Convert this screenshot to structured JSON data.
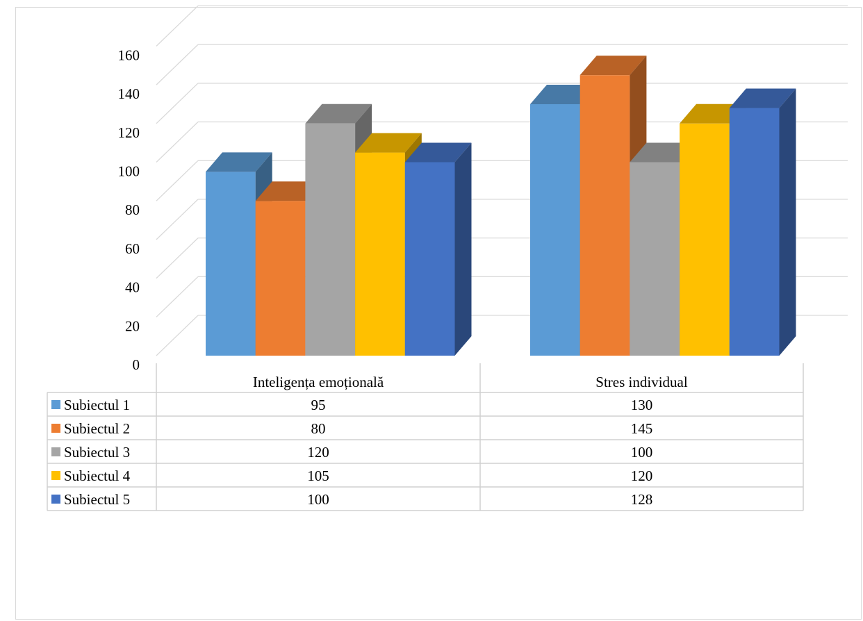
{
  "chart_data": {
    "type": "bar",
    "subtype": "3d-clustered-column",
    "categories": [
      "Inteligența emoțională",
      "Stres individual"
    ],
    "series": [
      {
        "name": "Subiectul 1",
        "color": "#5B9BD5",
        "values": [
          95,
          130
        ]
      },
      {
        "name": "Subiectul 2",
        "color": "#ED7D31",
        "values": [
          80,
          145
        ]
      },
      {
        "name": "Subiectul 3",
        "color": "#A5A5A5",
        "values": [
          120,
          100
        ]
      },
      {
        "name": "Subiectul 4",
        "color": "#FFC000",
        "values": [
          105,
          120
        ]
      },
      {
        "name": "Subiectul 5",
        "color": "#4472C4",
        "values": [
          100,
          128
        ]
      }
    ],
    "yticks": [
      0,
      20,
      40,
      60,
      80,
      100,
      120,
      140,
      160
    ],
    "ylim": [
      0,
      160
    ],
    "grid": true,
    "legend": "data-table",
    "title": "",
    "xlabel": "",
    "ylabel": ""
  }
}
